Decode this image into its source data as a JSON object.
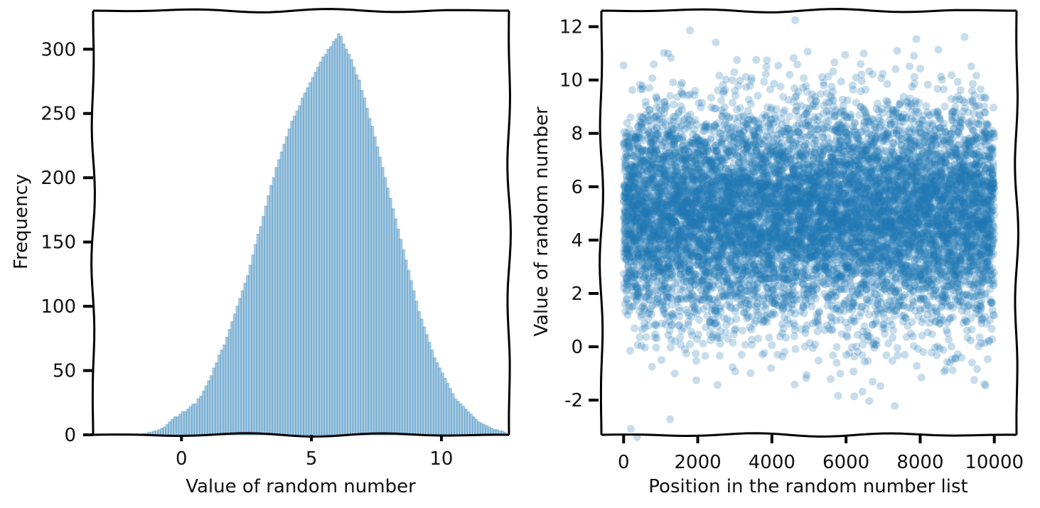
{
  "chart_data": [
    {
      "type": "bar",
      "subtype": "histogram",
      "xlabel": "Value of random number",
      "ylabel": "Frequency",
      "xlim": [
        -3.4,
        12.6
      ],
      "ylim": [
        0,
        330
      ],
      "xticks": [
        0,
        5,
        10
      ],
      "xtick_labels": [
        "0",
        "5",
        "10"
      ],
      "yticks": [
        0,
        50,
        100,
        150,
        200,
        250,
        300
      ],
      "ytick_labels": [
        "0",
        "50",
        "100",
        "150",
        "200",
        "250",
        "300"
      ],
      "bin_width": 0.1,
      "bin_start": -1.5,
      "values": [
        1,
        1,
        2,
        2,
        3,
        3,
        4,
        5,
        6,
        8,
        10,
        12,
        14,
        14,
        16,
        18,
        18,
        20,
        22,
        24,
        24,
        28,
        30,
        34,
        38,
        42,
        46,
        52,
        56,
        62,
        66,
        70,
        76,
        82,
        88,
        94,
        100,
        106,
        112,
        118,
        124,
        132,
        140,
        148,
        156,
        162,
        170,
        178,
        186,
        194,
        200,
        208,
        214,
        220,
        226,
        232,
        238,
        244,
        248,
        252,
        256,
        262,
        266,
        270,
        274,
        278,
        282,
        286,
        290,
        294,
        296,
        300,
        302,
        306,
        308,
        312,
        310,
        304,
        300,
        296,
        292,
        286,
        280,
        276,
        268,
        262,
        254,
        246,
        240,
        232,
        224,
        216,
        208,
        200,
        192,
        184,
        176,
        168,
        160,
        152,
        144,
        136,
        128,
        120,
        112,
        104,
        96,
        90,
        84,
        78,
        72,
        66,
        60,
        56,
        52,
        48,
        44,
        40,
        36,
        32,
        28,
        26,
        24,
        22,
        20,
        18,
        16,
        14,
        12,
        10,
        9,
        8,
        7,
        6,
        5,
        4,
        4,
        3,
        3,
        2
      ],
      "color": "#1f77b4",
      "bar_alpha": 0.35,
      "grid": false
    },
    {
      "type": "scatter",
      "xlabel": "Position in the random number list",
      "ylabel": "Value of random number",
      "xlim": [
        -600,
        10600
      ],
      "ylim": [
        -3.3,
        12.6
      ],
      "xticks": [
        0,
        2000,
        4000,
        6000,
        8000,
        10000
      ],
      "xtick_labels": [
        "0",
        "2000",
        "4000",
        "6000",
        "8000",
        "10000"
      ],
      "yticks": [
        -2,
        0,
        2,
        4,
        6,
        8,
        10,
        12
      ],
      "ytick_labels": [
        "-2",
        "0",
        "2",
        "4",
        "6",
        "8",
        "10",
        "12"
      ],
      "n_points": 10000,
      "distribution": {
        "mean": 5,
        "std": 2
      },
      "color": "#1f77b4",
      "point_alpha": 0.25,
      "grid": false
    }
  ]
}
